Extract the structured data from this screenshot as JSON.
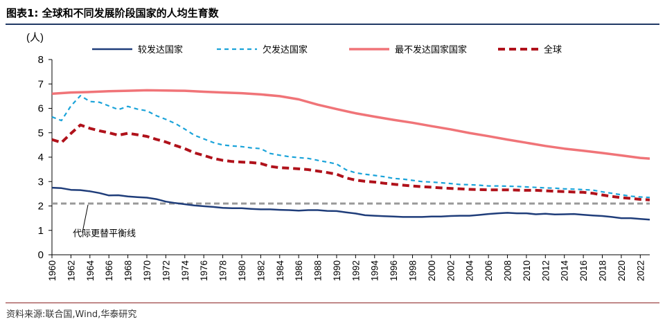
{
  "header": {
    "title": "图表1:  全球和不同发展阶段国家的人均生育数"
  },
  "footer": {
    "source": "资料来源:联合国,Wind,华泰研究"
  },
  "chart_data": {
    "type": "line",
    "ylabel": "(人)",
    "ylim": [
      0,
      8
    ],
    "yticks": [
      0,
      1,
      2,
      3,
      4,
      5,
      6,
      7,
      8
    ],
    "xlim": [
      1960,
      2023
    ],
    "xticks": [
      "1960",
      "1962",
      "1964",
      "1966",
      "1968",
      "1970",
      "1972",
      "1974",
      "1976",
      "1978",
      "1980",
      "1982",
      "1984",
      "1986",
      "1988",
      "1990",
      "1992",
      "1994",
      "1996",
      "1998",
      "2000",
      "2002",
      "2004",
      "2006",
      "2008",
      "2010",
      "2012",
      "2014",
      "2016",
      "2018",
      "2020",
      "2022"
    ],
    "grid": false,
    "legend_position": "top",
    "annotation": {
      "text": "代际更替平衡线",
      "y": 2.1
    },
    "reference_line": {
      "name": "代际更替平衡线",
      "y": 2.1,
      "color": "#999999"
    },
    "series": [
      {
        "name": "较发达国家",
        "color": "#1f3d7a",
        "style": "solid",
        "x": [
          1960,
          1961,
          1962,
          1963,
          1964,
          1965,
          1966,
          1967,
          1968,
          1969,
          1970,
          1971,
          1972,
          1973,
          1974,
          1975,
          1976,
          1977,
          1978,
          1979,
          1980,
          1981,
          1982,
          1983,
          1984,
          1985,
          1986,
          1987,
          1988,
          1989,
          1990,
          1991,
          1992,
          1993,
          1994,
          1995,
          1996,
          1997,
          1998,
          1999,
          2000,
          2001,
          2002,
          2003,
          2004,
          2005,
          2006,
          2007,
          2008,
          2009,
          2010,
          2011,
          2012,
          2013,
          2014,
          2015,
          2016,
          2017,
          2018,
          2019,
          2020,
          2021,
          2022,
          2023
        ],
        "values": [
          2.75,
          2.73,
          2.66,
          2.65,
          2.6,
          2.53,
          2.43,
          2.44,
          2.39,
          2.36,
          2.34,
          2.28,
          2.18,
          2.12,
          2.07,
          2.02,
          1.99,
          1.96,
          1.92,
          1.91,
          1.91,
          1.88,
          1.86,
          1.86,
          1.84,
          1.83,
          1.81,
          1.83,
          1.83,
          1.8,
          1.79,
          1.74,
          1.69,
          1.62,
          1.6,
          1.58,
          1.57,
          1.55,
          1.55,
          1.55,
          1.57,
          1.57,
          1.59,
          1.6,
          1.6,
          1.63,
          1.67,
          1.7,
          1.72,
          1.7,
          1.7,
          1.66,
          1.68,
          1.65,
          1.66,
          1.67,
          1.64,
          1.61,
          1.59,
          1.55,
          1.5,
          1.5,
          1.47,
          1.44
        ]
      },
      {
        "name": "欠发达国家",
        "color": "#1aa3d9",
        "style": "dashed",
        "x": [
          1960,
          1961,
          1962,
          1963,
          1964,
          1965,
          1966,
          1967,
          1968,
          1969,
          1970,
          1971,
          1972,
          1973,
          1974,
          1975,
          1976,
          1977,
          1978,
          1979,
          1980,
          1981,
          1982,
          1983,
          1984,
          1985,
          1986,
          1987,
          1988,
          1989,
          1990,
          1991,
          1992,
          1993,
          1994,
          1995,
          1996,
          1997,
          1998,
          1999,
          2000,
          2001,
          2002,
          2003,
          2004,
          2005,
          2006,
          2007,
          2008,
          2009,
          2010,
          2011,
          2012,
          2013,
          2014,
          2015,
          2016,
          2017,
          2018,
          2019,
          2020,
          2021,
          2022,
          2023
        ],
        "values": [
          5.65,
          5.5,
          6.1,
          6.52,
          6.28,
          6.25,
          6.1,
          5.95,
          6.08,
          5.97,
          5.9,
          5.7,
          5.55,
          5.38,
          5.15,
          4.9,
          4.75,
          4.6,
          4.5,
          4.46,
          4.43,
          4.38,
          4.35,
          4.15,
          4.08,
          4.02,
          3.98,
          3.95,
          3.87,
          3.8,
          3.72,
          3.48,
          3.36,
          3.3,
          3.25,
          3.2,
          3.13,
          3.1,
          3.05,
          3.0,
          2.98,
          2.95,
          2.92,
          2.88,
          2.87,
          2.85,
          2.82,
          2.82,
          2.81,
          2.8,
          2.78,
          2.76,
          2.74,
          2.73,
          2.7,
          2.69,
          2.67,
          2.65,
          2.58,
          2.52,
          2.46,
          2.4,
          2.37,
          2.35
        ]
      },
      {
        "name": "最不发达国家国家",
        "color": "#f07478",
        "style": "solid",
        "x": [
          1960,
          1962,
          1964,
          1966,
          1968,
          1970,
          1972,
          1974,
          1976,
          1978,
          1980,
          1982,
          1984,
          1986,
          1988,
          1990,
          1992,
          1994,
          1996,
          1998,
          2000,
          2002,
          2004,
          2006,
          2008,
          2010,
          2012,
          2014,
          2016,
          2018,
          2020,
          2022,
          2023
        ],
        "values": [
          6.6,
          6.65,
          6.67,
          6.7,
          6.72,
          6.74,
          6.73,
          6.72,
          6.68,
          6.65,
          6.62,
          6.57,
          6.5,
          6.37,
          6.15,
          5.97,
          5.8,
          5.66,
          5.53,
          5.41,
          5.27,
          5.14,
          4.99,
          4.86,
          4.72,
          4.59,
          4.46,
          4.35,
          4.26,
          4.17,
          4.07,
          3.97,
          3.94
        ]
      },
      {
        "name": "全球",
        "color": "#b0121b",
        "style": "dashed",
        "x": [
          1960,
          1961,
          1962,
          1963,
          1964,
          1965,
          1966,
          1967,
          1968,
          1969,
          1970,
          1971,
          1972,
          1973,
          1974,
          1975,
          1976,
          1977,
          1978,
          1979,
          1980,
          1981,
          1982,
          1983,
          1984,
          1985,
          1986,
          1987,
          1988,
          1989,
          1990,
          1991,
          1992,
          1993,
          1994,
          1995,
          1996,
          1997,
          1998,
          1999,
          2000,
          2001,
          2002,
          2003,
          2004,
          2005,
          2006,
          2007,
          2008,
          2009,
          2010,
          2011,
          2012,
          2013,
          2014,
          2015,
          2016,
          2017,
          2018,
          2019,
          2020,
          2021,
          2022,
          2023
        ],
        "values": [
          4.72,
          4.6,
          4.97,
          5.32,
          5.18,
          5.08,
          5.0,
          4.9,
          4.98,
          4.92,
          4.85,
          4.73,
          4.62,
          4.48,
          4.35,
          4.18,
          4.07,
          3.95,
          3.87,
          3.82,
          3.8,
          3.78,
          3.74,
          3.62,
          3.57,
          3.55,
          3.52,
          3.49,
          3.43,
          3.37,
          3.3,
          3.15,
          3.06,
          3.01,
          2.98,
          2.93,
          2.89,
          2.85,
          2.82,
          2.79,
          2.77,
          2.74,
          2.72,
          2.7,
          2.68,
          2.67,
          2.66,
          2.66,
          2.66,
          2.65,
          2.64,
          2.64,
          2.62,
          2.6,
          2.59,
          2.57,
          2.56,
          2.52,
          2.45,
          2.39,
          2.34,
          2.31,
          2.27,
          2.25
        ]
      }
    ]
  }
}
